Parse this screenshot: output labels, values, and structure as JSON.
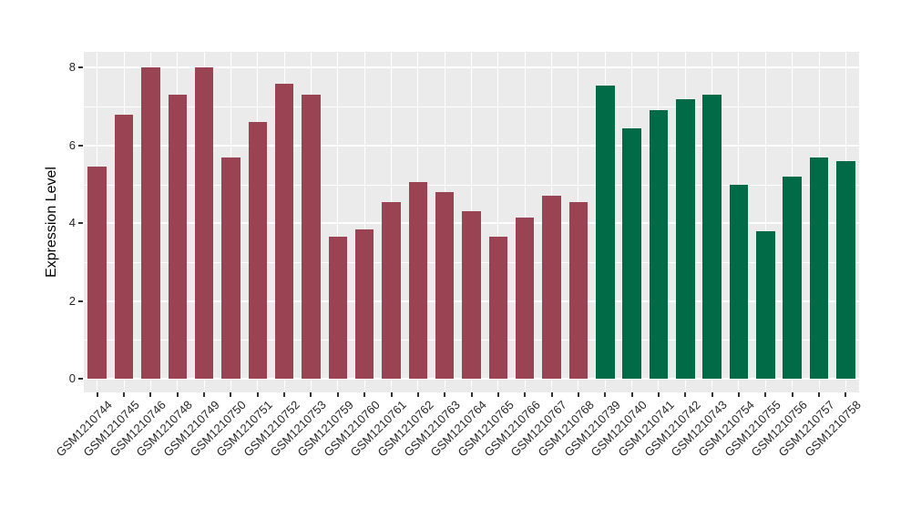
{
  "chart_data": {
    "type": "bar",
    "title": "",
    "xlabel": "",
    "ylabel": "Expression Level",
    "ylim": [
      0,
      8.4
    ],
    "yticks_major": [
      0,
      2,
      4,
      6,
      8
    ],
    "yticks_minor": [
      1,
      3,
      5,
      7
    ],
    "grid": "white major+minor horizontal lines, white vertical line at each category (ggplot grey theme)",
    "legend_position": "none",
    "panel_bg": "#EBEBEB",
    "grid_color": "#FFFFFF",
    "tick_mark_color": "#333333",
    "axis_text_color": "#262626",
    "categories": [
      "GSM1210744",
      "GSM1210745",
      "GSM1210746",
      "GSM1210748",
      "GSM1210749",
      "GSM1210750",
      "GSM1210751",
      "GSM1210752",
      "GSM1210753",
      "GSM1210759",
      "GSM1210760",
      "GSM1210761",
      "GSM1210762",
      "GSM1210763",
      "GSM1210764",
      "GSM1210765",
      "GSM1210766",
      "GSM1210767",
      "GSM1210768",
      "GSM1210739",
      "GSM1210740",
      "GSM1210741",
      "GSM1210742",
      "GSM1210743",
      "GSM1210754",
      "GSM1210755",
      "GSM1210756",
      "GSM1210757",
      "GSM1210758"
    ],
    "values": [
      5.45,
      6.8,
      8.0,
      7.3,
      8.0,
      5.7,
      6.6,
      7.6,
      7.3,
      3.65,
      3.85,
      4.55,
      5.05,
      4.8,
      4.3,
      3.65,
      4.15,
      4.7,
      4.55,
      7.55,
      6.45,
      6.9,
      7.2,
      7.3,
      5.0,
      3.8,
      5.2,
      5.7,
      5.6
    ],
    "groups": [
      "maroon",
      "maroon",
      "maroon",
      "maroon",
      "maroon",
      "maroon",
      "maroon",
      "maroon",
      "maroon",
      "maroon",
      "maroon",
      "maroon",
      "maroon",
      "maroon",
      "maroon",
      "maroon",
      "maroon",
      "maroon",
      "maroon",
      "green",
      "green",
      "green",
      "green",
      "green",
      "green",
      "green",
      "green",
      "green",
      "green"
    ],
    "group_colors": {
      "maroon": "#9A4352",
      "green": "#006B46"
    }
  }
}
